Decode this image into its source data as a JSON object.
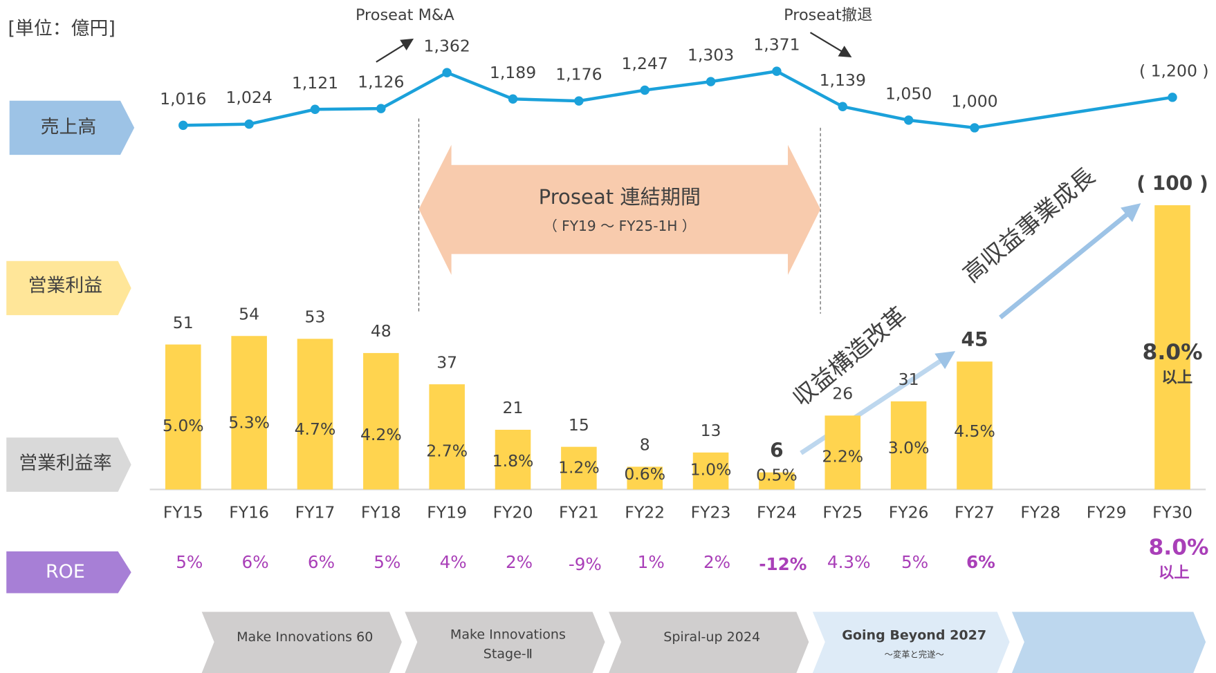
{
  "chart_data": {
    "type": "bar-line",
    "unit": "[単位：億円]",
    "categories": [
      "FY15",
      "FY16",
      "FY17",
      "FY18",
      "FY19",
      "FY20",
      "FY21",
      "FY22",
      "FY23",
      "FY24",
      "FY25",
      "FY26",
      "FY27",
      "FY28",
      "FY29",
      "FY30"
    ],
    "row_labels": [
      "売上高",
      "営業利益",
      "営業利益率",
      "ROE"
    ],
    "sales": {
      "color": "#1ba1da",
      "values": [
        1016,
        1024,
        1121,
        1126,
        1362,
        1189,
        1176,
        1247,
        1303,
        1371,
        1139,
        1050,
        1000,
        null,
        null,
        1200
      ],
      "value_labels": [
        "1,016",
        "1,024",
        "1,121",
        "1,126",
        "1,362",
        "1,189",
        "1,176",
        "1,247",
        "1,303",
        "1,371",
        "1,139",
        "1,050",
        "1,000",
        null,
        null,
        "( 1,200 )"
      ]
    },
    "profit": {
      "color": "#ffd44f",
      "values": [
        51,
        54,
        53,
        48,
        37,
        21,
        15,
        8,
        13,
        6,
        26,
        31,
        45,
        null,
        null,
        100
      ],
      "value_labels": [
        "51",
        "54",
        "53",
        "48",
        "37",
        "21",
        "15",
        "8",
        "13",
        "6",
        "26",
        "31",
        "45",
        null,
        null,
        "( 100 )"
      ],
      "bold": [
        9,
        12,
        15
      ]
    },
    "margin": {
      "values": [
        5.0,
        5.3,
        4.7,
        4.2,
        2.7,
        1.8,
        1.2,
        0.6,
        1.0,
        0.5,
        2.2,
        3.0,
        4.5,
        null,
        null,
        8.0
      ],
      "value_labels": [
        "5.0%",
        "5.3%",
        "4.7%",
        "4.2%",
        "2.7%",
        "1.8%",
        "1.2%",
        "0.6%",
        "1.0%",
        "0.5%",
        "2.2%",
        "3.0%",
        "4.5%",
        null,
        null,
        "8.0%"
      ],
      "note": "以上"
    },
    "roe": {
      "color": "#a93fb8",
      "values": [
        5,
        6,
        6,
        5,
        4,
        2,
        -9,
        1,
        2,
        -12,
        4.3,
        5,
        6,
        null,
        null,
        8.0
      ],
      "value_labels": [
        "5%",
        "6%",
        "6%",
        "5%",
        "4%",
        "2%",
        "-9%",
        "1%",
        "2%",
        "-12%",
        "4.3%",
        "5%",
        "6%",
        null,
        null,
        "8.0%"
      ],
      "bold": [
        9,
        12
      ],
      "note": "以上"
    },
    "annotations": {
      "ma": "Proseat M&A",
      "exit": "Proseat撤退",
      "period": "Proseat 連結期間",
      "period_range": "（ FY19 ～ FY25-1H ）",
      "reform": "収益構造改革",
      "growth": "高収益事業成長"
    },
    "phases": [
      "Make Innovations 60",
      [
        "Make Innovations",
        "Stage-Ⅱ"
      ],
      "Spiral-up 2024",
      "Going Beyond 2027",
      "～変革と完遂～"
    ]
  }
}
